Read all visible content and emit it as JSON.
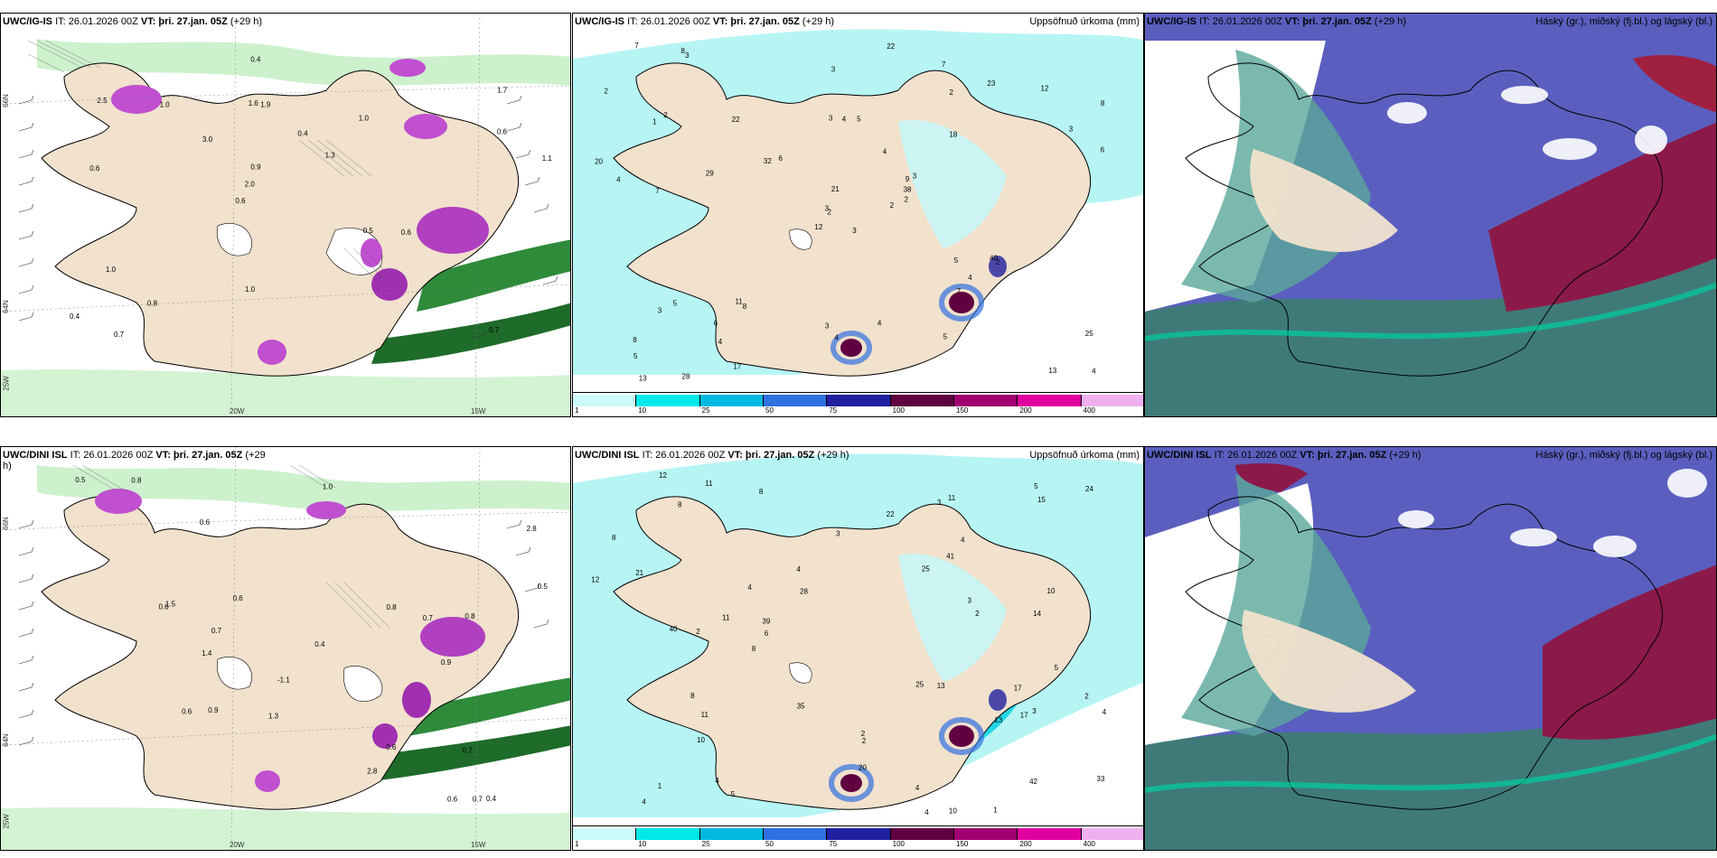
{
  "panels": {
    "p1": {
      "model": "UWC/IG-IS",
      "it": "IT: 26.01.2026 00Z",
      "vt": "VT: þri. 27.jan. 05Z",
      "lead": "(+29 h)"
    },
    "p2": {
      "model": "UWC/IG-IS",
      "it": "IT: 26.01.2026 00Z",
      "vt": "VT: þri. 27.jan. 05Z",
      "lead": "(+29 h)",
      "right": "Uppsöfnuð úrkoma (mm)"
    },
    "p3": {
      "model": "UWC/IG-IS",
      "it": "IT: 26.01.2026 00Z",
      "vt": "VT: þri. 27.jan. 05Z",
      "lead": "(+29 h)",
      "right": "Háský (gr.), miðský (fj.bl.) og lágský (bl.)"
    },
    "p4": {
      "model": "UWC/DINI ISL",
      "it": "IT: 26.01.2026 00Z",
      "vt": "VT: þri. 27.jan. 05Z",
      "lead": "(+29 h)"
    },
    "p5": {
      "model": "UWC/DINI ISL",
      "it": "IT: 26.01.2026 00Z",
      "vt": "VT: þri. 27.jan. 05Z",
      "lead": "(+29 h)",
      "right": "Uppsöfnuð úrkoma (mm)"
    },
    "p6": {
      "model": "UWC/DINI ISL",
      "it": "IT: 26.01.2026 00Z",
      "vt": "VT: þri. 27.jan. 05Z",
      "lead": "(+29 h)",
      "right": "Háský (gr.), miðský (fj.bl.) og lágský (bl.)"
    }
  },
  "axes": {
    "lat1": "66N",
    "lat2": "64N",
    "lon1": "20W",
    "lon2": "15W",
    "lon3": "25W"
  },
  "colorbar": {
    "labels": [
      "1",
      "10",
      "25",
      "50",
      "75",
      "100",
      "150",
      "200",
      "400"
    ],
    "colors": [
      "#ccfafa",
      "#00e8e8",
      "#00b8e0",
      "#3070e0",
      "#2020a0",
      "#600040",
      "#a00070",
      "#e000a0",
      "#f0b0f0"
    ]
  },
  "p1_values": [
    "0.7",
    "0.6",
    "1.7",
    "0.6",
    "1.0",
    "0.7",
    "1.6",
    "0.4",
    "1.0",
    "3.0",
    "0.4",
    "0.8",
    "1.9",
    "1.3",
    "0.6",
    "2.5",
    "0.4",
    "1.1",
    "0.5",
    "0.6",
    "2.0",
    "1.0",
    "0.9",
    "1.0"
  ],
  "p4_values": [
    "-1.1",
    "0.6",
    "0.8",
    "0.9",
    "0.4",
    "0.6",
    "1.3",
    "1.4",
    "0.9",
    "0.7",
    "0.8",
    "1.0",
    "0.5",
    "0.6",
    "0.7",
    "0.6",
    "0.4",
    "0.5",
    "2.8",
    "0.6",
    "0.7",
    "1.5",
    "2.8",
    "0.6",
    "0.7",
    "0.8"
  ],
  "p2_values": [
    "3",
    "1",
    "2",
    "8",
    "9",
    "8",
    "7",
    "5",
    "2",
    "2",
    "3",
    "4",
    "7",
    "8",
    "12",
    "18",
    "28",
    "3",
    "4",
    "5",
    "6",
    "5",
    "4",
    "4",
    "3",
    "2",
    "2",
    "3",
    "4",
    "5",
    "6",
    "3",
    "3",
    "21",
    "22",
    "23",
    "11",
    "13",
    "25",
    "40",
    "22",
    "32",
    "29",
    "7",
    "17",
    "20",
    "38",
    "13",
    "4",
    "2",
    "3",
    "3",
    "2",
    "4",
    "5",
    "6",
    "8",
    "7",
    "4",
    "12"
  ],
  "p5_values": [
    "2",
    "1",
    "2",
    "1",
    "2",
    "4",
    "8",
    "4",
    "4",
    "14",
    "13",
    "15",
    "12",
    "3",
    "5",
    "8",
    "10",
    "4",
    "3",
    "3",
    "21",
    "17",
    "42",
    "40",
    "24",
    "25",
    "13",
    "35",
    "8",
    "11",
    "20",
    "10",
    "33",
    "4",
    "4",
    "2",
    "8",
    "5",
    "6",
    "12",
    "17",
    "41",
    "11",
    "11",
    "22",
    "25",
    "28",
    "39",
    "11",
    "10",
    "8",
    "2",
    "4",
    "3",
    "4",
    "5"
  ]
}
